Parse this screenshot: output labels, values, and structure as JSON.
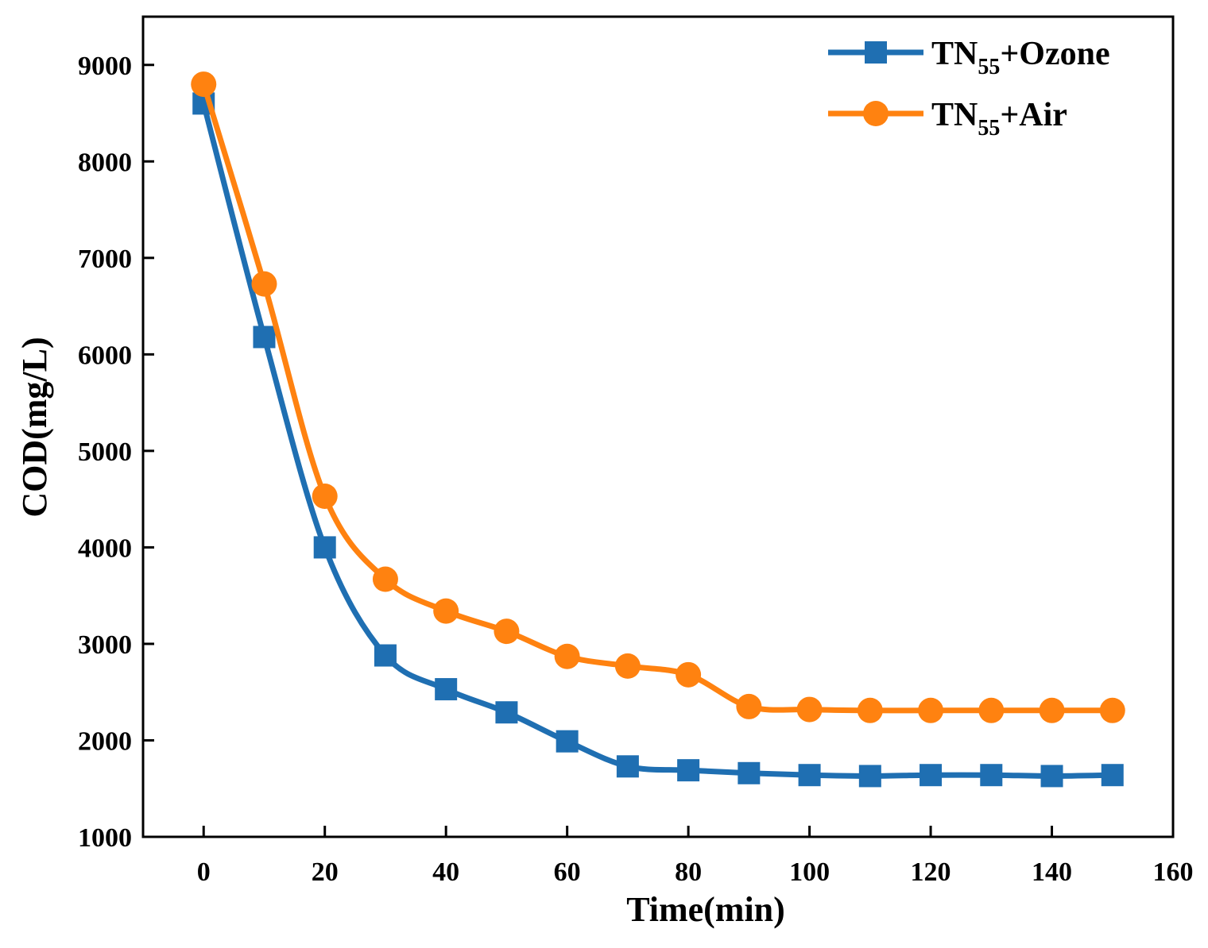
{
  "chart_data": {
    "type": "line",
    "title": "",
    "xlabel": "Time(min)",
    "ylabel": "COD(mg/L)",
    "xlim": [
      -10,
      160
    ],
    "ylim": [
      1000,
      9500
    ],
    "x_ticks": [
      0,
      20,
      40,
      60,
      80,
      100,
      120,
      140,
      160
    ],
    "y_ticks": [
      1000,
      2000,
      3000,
      4000,
      5000,
      6000,
      7000,
      8000,
      9000
    ],
    "x_tick_labels": [
      "0",
      "20",
      "40",
      "60",
      "80",
      "100",
      "120",
      "140",
      "160"
    ],
    "y_tick_labels": [
      "1000",
      "2000",
      "3000",
      "4000",
      "5000",
      "6000",
      "7000",
      "8000",
      "9000"
    ],
    "grid": false,
    "legend_position": "top-right",
    "x": [
      0,
      10,
      20,
      30,
      40,
      50,
      60,
      70,
      80,
      90,
      100,
      110,
      120,
      130,
      140,
      150
    ],
    "series": [
      {
        "name": "TN55+Ozone",
        "label_main": "TN",
        "label_sub": "55",
        "label_rest": "+Ozone",
        "marker": "square",
        "color": "#1f6fb2",
        "values": [
          8600,
          6180,
          4000,
          2880,
          2530,
          2290,
          1990,
          1730,
          1690,
          1660,
          1640,
          1630,
          1640,
          1640,
          1630,
          1640
        ]
      },
      {
        "name": "TN55+Air",
        "label_main": "TN",
        "label_sub": "55",
        "label_rest": "+Air",
        "marker": "circle",
        "color": "#ff8210",
        "values": [
          8800,
          6730,
          4530,
          3670,
          3340,
          3130,
          2870,
          2770,
          2680,
          2350,
          2320,
          2310,
          2310,
          2310,
          2310,
          2310
        ]
      }
    ]
  }
}
